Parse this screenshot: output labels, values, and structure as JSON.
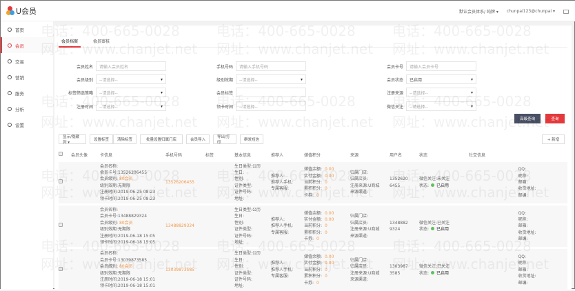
{
  "header": {
    "logo": "U会员",
    "system": "默认会员体系/ 纯牌",
    "user": "chunpai123@chunpai",
    "mail_icon": "mail-icon"
  },
  "sidebar": {
    "items": [
      {
        "label": "首页",
        "icon": "home-icon"
      },
      {
        "label": "会员",
        "icon": "user-icon",
        "active": true
      },
      {
        "label": "交易",
        "icon": "yen-icon"
      },
      {
        "label": "营销",
        "icon": "message-icon"
      },
      {
        "label": "服务",
        "icon": "heart-icon"
      },
      {
        "label": "分析",
        "icon": "chart-icon"
      },
      {
        "label": "设置",
        "icon": "gear-icon"
      }
    ]
  },
  "tabs": [
    {
      "label": "会员档案",
      "active": true
    },
    {
      "label": "会员审核"
    }
  ],
  "filters": [
    {
      "label": "会员姓名",
      "value": "请输入会员姓名",
      "select": false
    },
    {
      "label": "手机号码",
      "value": "请输入手机号码",
      "select": false
    },
    {
      "label": "会员卡号",
      "value": "请输入会员卡号",
      "select": false
    },
    {
      "label": "会员级别",
      "value": "--请选择--",
      "select": true
    },
    {
      "label": "级别效期",
      "value": "--请选择--",
      "select": true
    },
    {
      "label": "会员状态",
      "value": "已启用",
      "select": true
    },
    {
      "label": "标签筛选策略",
      "value": "--请选择--",
      "select": true
    },
    {
      "label": "会员标签",
      "value": "",
      "select": false
    },
    {
      "label": "注册来源",
      "value": "--请选择--",
      "select": true
    },
    {
      "label": "注册时间",
      "value": "--请选择--",
      "select": true
    },
    {
      "label": "领卡时间",
      "value": "--请选择--",
      "select": false
    },
    {
      "label": "微信关注",
      "value": "--请选择--",
      "select": true
    }
  ],
  "buttons": {
    "advanced": "高级查询",
    "search": "查询",
    "add": "+ 新增"
  },
  "toolbar": [
    "显示/隐藏列 ▾",
    "设置标签",
    "清除标签",
    "批量设置归属门店",
    "会员导入",
    "导出/打印",
    "群发短信"
  ],
  "columns": [
    "会员头像",
    "卡信息",
    "手机号码",
    "标签",
    "基本信息",
    "推荐人",
    "储值积分",
    "来源",
    "用户名",
    "状态",
    "社交信息"
  ],
  "rows": [
    {
      "card": [
        "会员名称:",
        "会员卡号:13526206455"
      ],
      "level": "80会员",
      "card2": [
        "级别效期:无期限",
        "注册时间:2019-06-25 08:23",
        "领卡时间:2019-06-25 08:23"
      ],
      "phone": "13526206455",
      "basic": [
        "生日类型:公历",
        "生日:",
        "性别:",
        "证件类型:",
        "证件号码:",
        "地址:"
      ],
      "ref": [
        "推荐人:",
        "推荐人手机:",
        "专属客服:"
      ],
      "stored": [
        [
          "储值余额:",
          "0.00"
        ],
        [
          "实付金额:",
          "0.00"
        ],
        [
          "当前积分:",
          "0"
        ],
        [
          "累积积分:",
          "0"
        ],
        [
          "卡券:",
          "0"
        ]
      ],
      "source": [
        "归属门店:",
        "归属店员:",
        "注册来源:U商城",
        "来源渠道:"
      ],
      "username": "13526206455",
      "wechat": "微信关注:未关注",
      "status_label": "状态:",
      "status": "已启用",
      "social": [
        "QQ:",
        "昵称:",
        "邮箱:",
        "收货地址:",
        "邮编:"
      ]
    },
    {
      "card": [
        "会员名称:",
        "会员卡号:13488829324"
      ],
      "level": "80会员",
      "card2": [
        "级别效期:无期限",
        "注册时间:2019-06-18 15:05",
        "领卡时间:2019-06-18 15:05"
      ],
      "phone": "13488829324",
      "basic": [
        "生日类型:公历",
        "生日:",
        "性别:",
        "证件类型:",
        "证件号码:",
        "地址:"
      ],
      "ref": [
        "推荐人:",
        "推荐人手机:",
        "专属客服:"
      ],
      "stored": [
        [
          "储值余额:",
          "0.00"
        ],
        [
          "实付金额:",
          "0.00"
        ],
        [
          "当前积分:",
          "0"
        ],
        [
          "累积积分:",
          "0"
        ],
        [
          "卡券:",
          "0"
        ]
      ],
      "source": [
        "归属门店:",
        "归属店员:",
        "注册来源:U商城",
        "来源渠道:"
      ],
      "username": "13488829324",
      "wechat": "微信关注:已关注",
      "status_label": "状态:",
      "status": "已启用",
      "social": [
        "QQ:",
        "昵称:",
        "邮箱:",
        "收货地址:",
        "邮编:"
      ]
    },
    {
      "card": [
        "会员名称:",
        "会员卡号:13039873585"
      ],
      "level": "80会员",
      "card2": [
        "级别效期:无期限",
        "注册时间:2019-06-18 15:01",
        "领卡时间:2019-06-18 15:01"
      ],
      "phone": "13039873585",
      "basic": [
        "生日类型:公历",
        "生日:",
        "性别:",
        "证件类型:",
        "证件号码:",
        "地址:"
      ],
      "ref": [
        "推荐人:",
        "推荐人手机:",
        "专属客服:"
      ],
      "stored": [
        [
          "储值余额:",
          "0.00"
        ],
        [
          "实付金额:",
          "0.00"
        ],
        [
          "当前积分:",
          "0"
        ],
        [
          "累积积分:",
          "0"
        ],
        [
          "卡券:",
          "0"
        ]
      ],
      "source": [
        "归属门店:",
        "归属店员:",
        "注册来源:U商城",
        "来源渠道:"
      ],
      "username": "13039873585",
      "wechat": "微信关注:已关注",
      "status_label": "状态:",
      "status": "已启用",
      "social": [
        "QQ:",
        "昵称:",
        "邮箱:",
        "收货地址:",
        "邮编:"
      ]
    }
  ],
  "watermark": {
    "phone": "电话：400-665-0028",
    "site": "网址：www.chanjet.net"
  },
  "colors": {
    "accent": "#e4393c",
    "dark_button": "#4a5064",
    "highlight": "#f39a4d",
    "enabled": "#5ac35a"
  }
}
